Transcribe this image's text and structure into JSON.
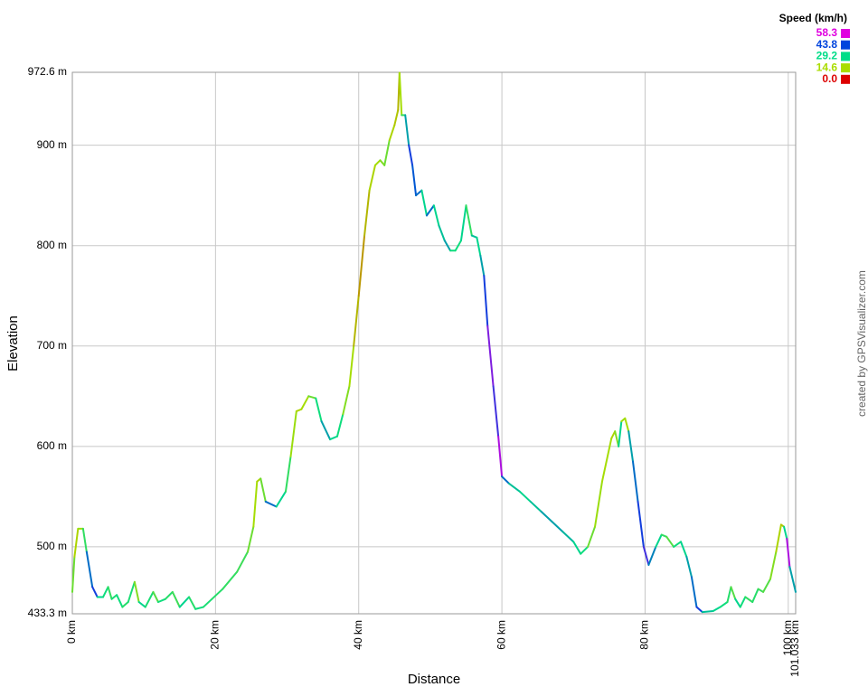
{
  "chart_data": {
    "type": "line",
    "y_label": "Elevation",
    "x_label": "Distance",
    "credit": "created by GPSVisualizer.com",
    "xlim": [
      0,
      101.033
    ],
    "ylim": [
      433.3,
      972.6
    ],
    "xticks": [
      {
        "value": 0,
        "label": "0 km"
      },
      {
        "value": 20,
        "label": "20 km"
      },
      {
        "value": 40,
        "label": "40 km"
      },
      {
        "value": 60,
        "label": "60 km"
      },
      {
        "value": 80,
        "label": "80 km"
      },
      {
        "value": 100,
        "label": "100 km"
      },
      {
        "value": 101.033,
        "label": "101.033 km"
      }
    ],
    "yticks": [
      {
        "value": 433.3,
        "label": "433.3 m"
      },
      {
        "value": 500,
        "label": "500 m"
      },
      {
        "value": 600,
        "label": "600 m"
      },
      {
        "value": 700,
        "label": "700 m"
      },
      {
        "value": 800,
        "label": "800 m"
      },
      {
        "value": 900,
        "label": "900 m"
      },
      {
        "value": 972.6,
        "label": "972.6 m"
      }
    ],
    "grid": true,
    "color_scale": {
      "title": "Speed (km/h)",
      "stops": [
        {
          "value": 58.3,
          "color": "#e000e0"
        },
        {
          "value": 43.8,
          "color": "#0044dd"
        },
        {
          "value": 29.2,
          "color": "#00dd88"
        },
        {
          "value": 14.6,
          "color": "#aadd00"
        },
        {
          "value": 0,
          "label": "0.0",
          "color": "#dd0000"
        }
      ]
    },
    "x": [
      0,
      0.3,
      0.8,
      1.5,
      2.0,
      2.8,
      3.5,
      4.3,
      5.0,
      5.5,
      6.2,
      7.0,
      7.8,
      8.7,
      9.3,
      10.2,
      11.3,
      12.0,
      13.0,
      14.0,
      15.0,
      16.3,
      17.2,
      18.3,
      19.5,
      21,
      23,
      24.5,
      25.3,
      25.8,
      26.3,
      27,
      28.5,
      29.8,
      30.5,
      31.3,
      32,
      33,
      34,
      34.8,
      36,
      37,
      37.8,
      38.7,
      39.3,
      40,
      40.8,
      41.5,
      42.3,
      43,
      43.6,
      44.3,
      45,
      45.5,
      45.7,
      46,
      46.5,
      47,
      47.5,
      48,
      48.8,
      49.5,
      50.5,
      51.2,
      52,
      52.8,
      53.5,
      54.3,
      55,
      55.8,
      56.5,
      57,
      57.5,
      58,
      58.8,
      59.5,
      60,
      61,
      62.5,
      64,
      65.5,
      67,
      68.5,
      70,
      71,
      72,
      73,
      74,
      75.3,
      75.8,
      76.3,
      76.7,
      77.2,
      77.7,
      78.3,
      79,
      79.8,
      80.5,
      81.5,
      82.3,
      83,
      84,
      85,
      85.8,
      86.5,
      87.2,
      88,
      89.5,
      90.5,
      91.5,
      92,
      92.6,
      93.3,
      94,
      95,
      95.8,
      96.5,
      97.5,
      98.3,
      99,
      99.4,
      99.8,
      100.2,
      101.033
    ],
    "values": [
      455,
      490,
      518,
      518,
      495,
      460,
      450,
      450,
      460,
      448,
      452,
      440,
      445,
      465,
      445,
      440,
      455,
      445,
      448,
      455,
      440,
      450,
      438,
      440,
      448,
      458,
      475,
      495,
      520,
      565,
      568,
      545,
      540,
      555,
      590,
      635,
      637,
      650,
      648,
      625,
      607,
      610,
      632,
      660,
      700,
      750,
      810,
      855,
      880,
      885,
      880,
      905,
      920,
      935,
      972,
      930,
      930,
      900,
      880,
      850,
      855,
      830,
      840,
      820,
      805,
      795,
      795,
      805,
      840,
      810,
      808,
      790,
      770,
      720,
      660,
      610,
      570,
      563,
      555,
      545,
      535,
      525,
      515,
      505,
      493,
      500,
      520,
      565,
      608,
      615,
      600,
      625,
      628,
      615,
      585,
      545,
      500,
      482,
      500,
      512,
      510,
      500,
      505,
      490,
      470,
      440,
      435,
      436,
      440,
      445,
      460,
      448,
      440,
      450,
      445,
      458,
      455,
      468,
      495,
      522,
      520,
      508,
      480,
      455
    ],
    "speed": [
      20,
      14,
      16,
      25,
      40,
      45,
      30,
      28,
      25,
      27,
      28,
      26,
      27,
      18,
      30,
      27,
      22,
      28,
      26,
      24,
      30,
      26,
      28,
      27,
      26,
      25,
      24,
      20,
      15,
      14,
      20,
      40,
      30,
      25,
      16,
      14,
      15,
      20,
      28,
      35,
      30,
      28,
      18,
      15,
      12,
      10,
      12,
      14,
      15,
      18,
      20,
      14,
      13,
      12,
      15,
      25,
      35,
      45,
      42,
      40,
      30,
      40,
      30,
      32,
      35,
      28,
      28,
      30,
      25,
      32,
      30,
      35,
      45,
      52,
      48,
      55,
      40,
      32,
      30,
      32,
      35,
      35,
      33,
      30,
      28,
      20,
      16,
      15,
      14,
      18,
      30,
      16,
      15,
      35,
      40,
      45,
      48,
      38,
      30,
      25,
      22,
      28,
      30,
      35,
      40,
      45,
      32,
      30,
      28,
      26,
      22,
      30,
      28,
      25,
      26,
      24,
      22,
      18,
      14,
      13,
      30,
      55,
      35,
      20
    ]
  }
}
